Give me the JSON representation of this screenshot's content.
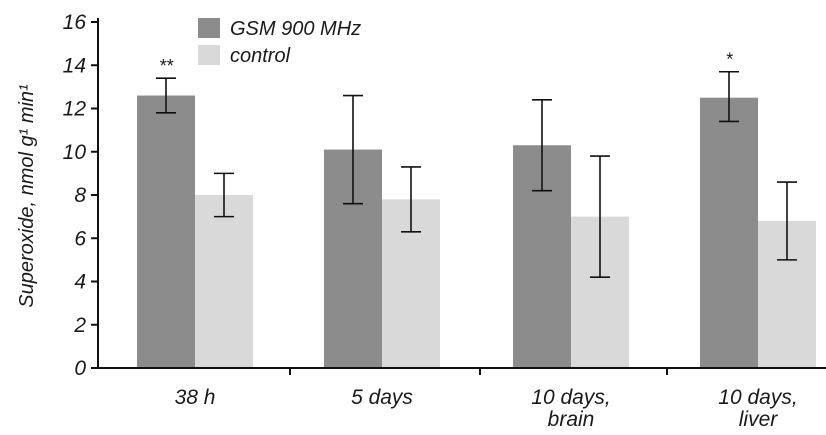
{
  "chart_data": {
    "type": "bar",
    "title": "",
    "xlabel": "",
    "ylabel": "Superoxide, nmol g¹ min¹",
    "ylim": [
      0,
      16
    ],
    "yticks": [
      0,
      2,
      4,
      6,
      8,
      10,
      12,
      14,
      16
    ],
    "categories": [
      "38 h",
      "5 days",
      "10 days,\nbrain",
      "10 days,\nliver"
    ],
    "series": [
      {
        "name": "GSM 900 MHz",
        "color": "#8c8c8c",
        "values": [
          12.6,
          10.1,
          10.3,
          12.5
        ],
        "err_low": [
          11.8,
          7.6,
          8.2,
          11.4
        ],
        "err_high": [
          13.4,
          12.6,
          12.4,
          13.7
        ]
      },
      {
        "name": "control",
        "color": "#d9d9d9",
        "values": [
          8.0,
          7.8,
          7.0,
          6.8
        ],
        "err_low": [
          7.0,
          6.3,
          4.2,
          5.0
        ],
        "err_high": [
          9.0,
          9.3,
          9.8,
          8.6
        ]
      }
    ],
    "annotations": [
      {
        "category_index": 0,
        "series_index": 0,
        "text": "**"
      },
      {
        "category_index": 3,
        "series_index": 0,
        "text": "*"
      }
    ],
    "legend_position": "top-left",
    "grid": false
  }
}
